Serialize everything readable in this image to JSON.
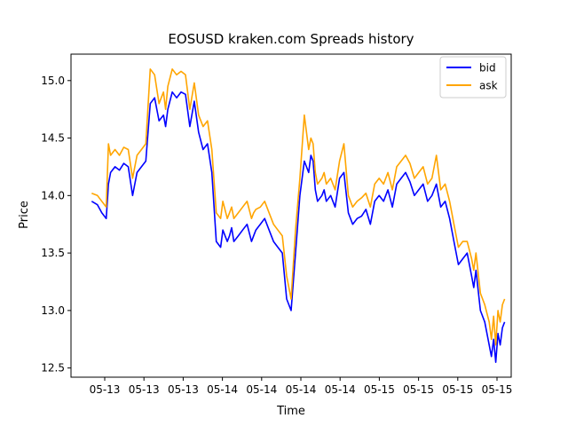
{
  "chart_data": {
    "type": "line",
    "title": "EOSUSD kraken.com Spreads history",
    "xlabel": "Time",
    "ylabel": "Price",
    "ylim": [
      12.42,
      15.23
    ],
    "xlim": [
      0,
      1
    ],
    "y_ticks": [
      12.5,
      13.0,
      13.5,
      14.0,
      14.5,
      15.0
    ],
    "y_tick_labels": [
      "12.5",
      "13.0",
      "13.5",
      "14.0",
      "14.5",
      "15.0"
    ],
    "x_ticks": [
      0.072,
      0.19,
      0.308,
      0.426,
      0.543,
      0.661,
      0.779,
      0.897
    ],
    "x_tick_labels": [
      "05-13",
      "05-13",
      "05-13",
      "05-14",
      "05-14",
      "05-14",
      "05-14",
      "05-15",
      "05-15",
      "05-15",
      "05-15"
    ],
    "x_tick_positions": [
      0.072,
      0.19,
      0.308,
      0.426,
      0.543,
      0.661,
      0.779,
      0.897,
      1.015,
      1.133,
      1.251
    ],
    "legend_position": "top-right",
    "grid": false,
    "series": [
      {
        "name": "bid",
        "color": "#0000ff",
        "x": [
          0.047,
          0.06,
          0.07,
          0.08,
          0.085,
          0.09,
          0.1,
          0.11,
          0.12,
          0.13,
          0.14,
          0.15,
          0.16,
          0.17,
          0.18,
          0.19,
          0.2,
          0.21,
          0.215,
          0.22,
          0.23,
          0.24,
          0.25,
          0.26,
          0.27,
          0.28,
          0.29,
          0.3,
          0.31,
          0.32,
          0.33,
          0.34,
          0.345,
          0.355,
          0.36,
          0.365,
          0.37,
          0.38,
          0.39,
          0.4,
          0.41,
          0.415,
          0.42,
          0.43,
          0.44,
          0.45,
          0.46,
          0.47,
          0.48,
          0.49,
          0.5,
          0.51,
          0.52,
          0.53,
          0.54,
          0.545,
          0.55,
          0.555,
          0.56,
          0.57,
          0.575,
          0.58,
          0.59,
          0.6,
          0.61,
          0.62,
          0.63,
          0.64,
          0.65,
          0.66,
          0.67,
          0.68,
          0.69,
          0.7,
          0.71,
          0.72,
          0.73,
          0.74,
          0.75,
          0.76,
          0.77,
          0.78,
          0.79,
          0.8,
          0.81,
          0.82,
          0.83,
          0.84,
          0.85,
          0.86,
          0.87,
          0.88,
          0.89,
          0.9,
          0.91,
          0.915,
          0.92,
          0.93,
          0.94,
          0.95,
          0.955,
          0.96,
          0.965,
          0.97,
          0.975,
          0.98,
          0.985
        ],
        "y": [
          13.95,
          13.92,
          13.85,
          13.8,
          14.1,
          14.2,
          14.25,
          14.22,
          14.28,
          14.25,
          14.0,
          14.2,
          14.25,
          14.3,
          14.8,
          14.85,
          14.65,
          14.7,
          14.6,
          14.75,
          14.9,
          14.85,
          14.9,
          14.88,
          14.6,
          14.82,
          14.55,
          14.4,
          14.45,
          14.2,
          13.6,
          13.55,
          13.7,
          13.6,
          13.65,
          13.72,
          13.6,
          13.65,
          13.7,
          13.75,
          13.6,
          13.65,
          13.7,
          13.75,
          13.8,
          13.7,
          13.6,
          13.55,
          13.5,
          13.1,
          13.0,
          13.5,
          14.0,
          14.3,
          14.2,
          14.35,
          14.3,
          14.05,
          13.95,
          14.0,
          14.05,
          13.95,
          14.0,
          13.9,
          14.15,
          14.2,
          13.85,
          13.75,
          13.8,
          13.82,
          13.88,
          13.75,
          13.95,
          14.0,
          13.95,
          14.05,
          13.9,
          14.1,
          14.15,
          14.2,
          14.12,
          14.0,
          14.05,
          14.1,
          13.95,
          14.0,
          14.1,
          13.9,
          13.95,
          13.8,
          13.6,
          13.4,
          13.45,
          13.5,
          13.3,
          13.2,
          13.35,
          13.0,
          12.9,
          12.7,
          12.6,
          12.75,
          12.55,
          12.8,
          12.7,
          12.85,
          12.9
        ],
        "x_note": "normalized time",
        "_": ""
      },
      {
        "name": "ask",
        "color": "#ffa500",
        "x": [
          0.047,
          0.06,
          0.07,
          0.08,
          0.085,
          0.09,
          0.1,
          0.11,
          0.12,
          0.13,
          0.14,
          0.15,
          0.16,
          0.17,
          0.18,
          0.19,
          0.2,
          0.21,
          0.215,
          0.22,
          0.23,
          0.24,
          0.25,
          0.26,
          0.27,
          0.28,
          0.29,
          0.3,
          0.31,
          0.32,
          0.33,
          0.34,
          0.345,
          0.355,
          0.36,
          0.365,
          0.37,
          0.38,
          0.39,
          0.4,
          0.41,
          0.415,
          0.42,
          0.43,
          0.44,
          0.45,
          0.46,
          0.47,
          0.48,
          0.49,
          0.5,
          0.51,
          0.52,
          0.53,
          0.54,
          0.545,
          0.55,
          0.555,
          0.56,
          0.57,
          0.575,
          0.58,
          0.59,
          0.6,
          0.61,
          0.62,
          0.63,
          0.64,
          0.65,
          0.66,
          0.67,
          0.68,
          0.69,
          0.7,
          0.71,
          0.72,
          0.73,
          0.74,
          0.75,
          0.76,
          0.77,
          0.78,
          0.79,
          0.8,
          0.81,
          0.82,
          0.83,
          0.84,
          0.85,
          0.86,
          0.87,
          0.88,
          0.89,
          0.9,
          0.91,
          0.915,
          0.92,
          0.93,
          0.94,
          0.95,
          0.955,
          0.96,
          0.965,
          0.97,
          0.975,
          0.98,
          0.985
        ],
        "y": [
          14.02,
          14.0,
          13.95,
          13.9,
          14.45,
          14.35,
          14.4,
          14.35,
          14.42,
          14.4,
          14.15,
          14.35,
          14.4,
          14.45,
          15.1,
          15.05,
          14.8,
          14.9,
          14.75,
          14.95,
          15.1,
          15.05,
          15.08,
          15.05,
          14.75,
          14.98,
          14.7,
          14.6,
          14.65,
          14.4,
          13.85,
          13.8,
          13.95,
          13.8,
          13.85,
          13.9,
          13.8,
          13.85,
          13.9,
          13.95,
          13.8,
          13.85,
          13.88,
          13.9,
          13.95,
          13.85,
          13.75,
          13.7,
          13.65,
          13.3,
          13.1,
          13.7,
          14.15,
          14.7,
          14.4,
          14.5,
          14.45,
          14.2,
          14.1,
          14.15,
          14.2,
          14.1,
          14.15,
          14.05,
          14.3,
          14.45,
          14.0,
          13.9,
          13.95,
          13.98,
          14.02,
          13.9,
          14.1,
          14.15,
          14.1,
          14.2,
          14.05,
          14.25,
          14.3,
          14.35,
          14.28,
          14.15,
          14.2,
          14.25,
          14.1,
          14.15,
          14.35,
          14.05,
          14.1,
          13.95,
          13.75,
          13.55,
          13.6,
          13.6,
          13.45,
          13.35,
          13.5,
          13.15,
          13.05,
          12.9,
          12.75,
          12.95,
          12.7,
          13.0,
          12.9,
          13.05,
          13.1
        ]
      }
    ]
  }
}
